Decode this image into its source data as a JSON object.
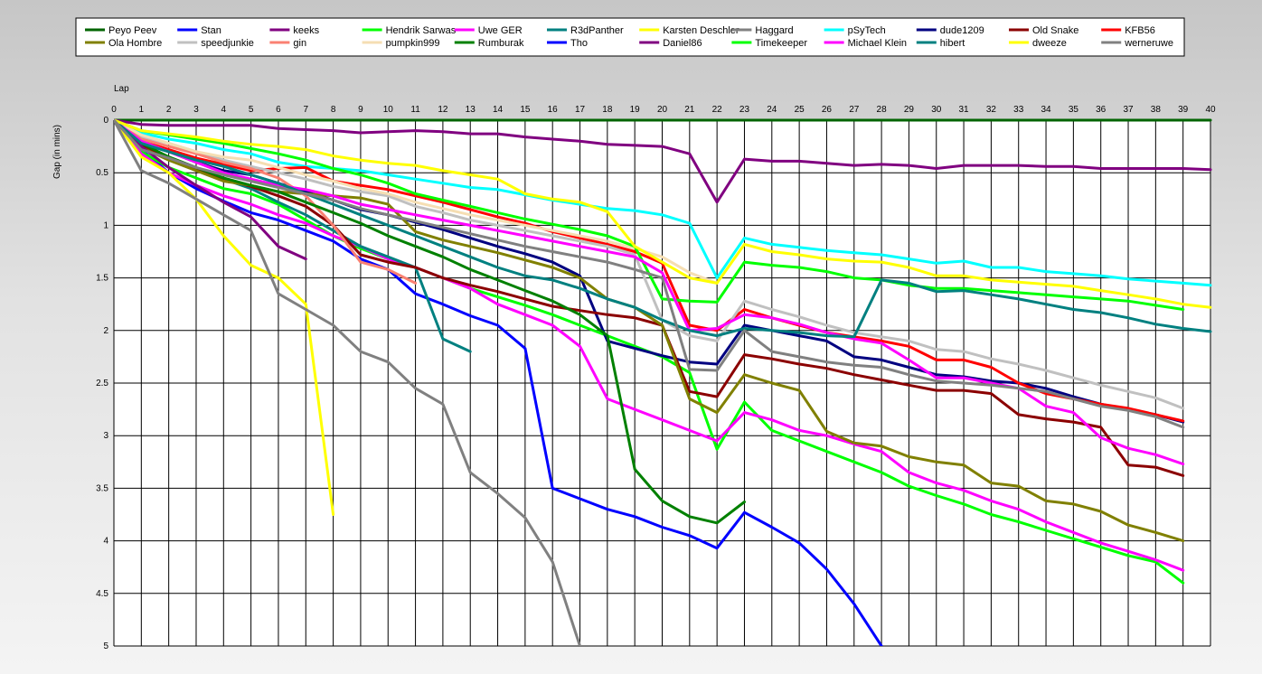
{
  "chart_data": {
    "type": "line",
    "title": "",
    "xlabel": "Lap",
    "ylabel": "Gap (in mins)",
    "xlim": [
      0,
      40
    ],
    "ylim": [
      0,
      5
    ],
    "y_inverted": true,
    "grid": true,
    "legend_position": "top",
    "x_ticks": [
      "0",
      "1",
      "2",
      "3",
      "4",
      "5",
      "6",
      "7",
      "8",
      "9",
      "10",
      "11",
      "12",
      "13",
      "14",
      "15",
      "16",
      "17",
      "18",
      "19",
      "20",
      "21",
      "22",
      "23",
      "24",
      "25",
      "26",
      "27",
      "28",
      "29",
      "30",
      "31",
      "32",
      "33",
      "34",
      "35",
      "36",
      "37",
      "38",
      "39",
      "40"
    ],
    "y_ticks": [
      "0",
      "0.5",
      "1",
      "1.5",
      "2",
      "2.5",
      "3",
      "3.5",
      "4",
      "4.5",
      "5"
    ],
    "series": [
      {
        "name": "Peyo Peev",
        "color": "#006400",
        "values": [
          0,
          0,
          0,
          0,
          0,
          0,
          0,
          0,
          0,
          0,
          0,
          0,
          0,
          0,
          0,
          0,
          0,
          0,
          0,
          0,
          0,
          0,
          0,
          0,
          0,
          0,
          0,
          0,
          0,
          0,
          0,
          0,
          0,
          0,
          0,
          0,
          0,
          0,
          0,
          0,
          0
        ]
      },
      {
        "name": "Stan",
        "color": "#0000ff",
        "values": [
          0,
          0.28,
          0.5,
          0.65,
          0.77,
          0.88,
          0.95,
          1.05,
          1.15,
          1.32,
          1.42,
          1.65,
          1.75,
          1.86,
          1.95,
          2.17,
          3.5,
          3.6,
          3.7,
          3.77,
          3.87,
          3.95,
          4.07,
          3.73,
          3.87,
          4.02,
          4.27,
          4.6,
          5.0
        ]
      },
      {
        "name": "keeks",
        "color": "#800080",
        "values": [
          0,
          0.04,
          0.05,
          0.05,
          0.05,
          0.05,
          0.08,
          0.09,
          0.1,
          0.12,
          0.11,
          0.1,
          0.11,
          0.13,
          0.13,
          0.16,
          0.18,
          0.2,
          0.23,
          0.24,
          0.25,
          0.32,
          0.78,
          0.37,
          0.39,
          0.39,
          0.41,
          0.43,
          0.42,
          0.43,
          0.46,
          0.43,
          0.43,
          0.43,
          0.44,
          0.44,
          0.46,
          0.46,
          0.46,
          0.46,
          0.47
        ]
      },
      {
        "name": "Hendrik Sarwas",
        "color": "#00ff00",
        "values": [
          0,
          0.3,
          0.45,
          0.55,
          0.65,
          0.7,
          0.8,
          0.95,
          1.1,
          1.22,
          1.32,
          1.4,
          1.5,
          1.6,
          1.68,
          1.76,
          1.85,
          1.95,
          2.05,
          2.15,
          2.25,
          2.4,
          3.13,
          2.68,
          2.95,
          3.05,
          3.15,
          3.25,
          3.35,
          3.48,
          3.57,
          3.65,
          3.75,
          3.82,
          3.9,
          3.98,
          4.06,
          4.14,
          4.2,
          4.4
        ]
      },
      {
        "name": "Uwe GER",
        "color": "#ff00ff",
        "values": [
          0,
          0.32,
          0.5,
          0.62,
          0.72,
          0.8,
          0.9,
          0.98,
          1.1,
          1.2,
          1.32,
          1.4,
          1.5,
          1.6,
          1.75,
          1.85,
          1.95,
          2.15,
          2.65,
          2.75,
          2.85,
          2.95,
          3.05,
          2.78,
          2.85,
          2.95,
          3.0,
          3.08,
          3.15,
          3.35,
          3.45,
          3.52,
          3.62,
          3.7,
          3.82,
          3.92,
          4.02,
          4.1,
          4.18,
          4.28
        ]
      },
      {
        "name": "R3dPanther",
        "color": "#008080",
        "values": [
          0,
          0.25,
          0.36,
          0.47,
          0.56,
          0.65,
          0.78,
          0.9,
          1.05,
          1.2,
          1.3,
          1.4,
          2.08,
          2.2
        ]
      },
      {
        "name": "Karsten Deschler",
        "color": "#ffff00",
        "values": [
          0,
          0.35,
          0.5,
          0.75,
          1.1,
          1.38,
          1.5,
          1.75,
          3.75
        ]
      },
      {
        "name": "Haggard",
        "color": "#808080",
        "values": [
          0,
          0.48,
          0.6,
          0.75,
          0.9,
          1.05,
          1.65,
          1.8,
          1.95,
          2.2,
          2.3,
          2.55,
          2.7,
          3.35,
          3.55,
          3.78,
          4.2,
          5.0
        ]
      },
      {
        "name": "pSyTech",
        "color": "#00ffff",
        "values": [
          0,
          0.12,
          0.18,
          0.22,
          0.28,
          0.32,
          0.4,
          0.44,
          0.46,
          0.48,
          0.52,
          0.56,
          0.6,
          0.64,
          0.66,
          0.71,
          0.76,
          0.8,
          0.84,
          0.86,
          0.9,
          0.98,
          1.5,
          1.12,
          1.18,
          1.21,
          1.24,
          1.26,
          1.28,
          1.32,
          1.36,
          1.34,
          1.4,
          1.4,
          1.44,
          1.46,
          1.48,
          1.51,
          1.53,
          1.55,
          1.57
        ]
      },
      {
        "name": "dude1209",
        "color": "#000080",
        "values": [
          0,
          0.22,
          0.3,
          0.4,
          0.48,
          0.52,
          0.6,
          0.68,
          0.76,
          0.85,
          0.9,
          0.97,
          1.04,
          1.12,
          1.2,
          1.27,
          1.35,
          1.48,
          2.1,
          2.17,
          2.24,
          2.3,
          2.32,
          1.95,
          2.0,
          2.05,
          2.1,
          2.25,
          2.28,
          2.35,
          2.42,
          2.44,
          2.48,
          2.5,
          2.55,
          2.63,
          2.7,
          2.75,
          2.8,
          2.87
        ]
      },
      {
        "name": "Old Snake",
        "color": "#8b0000",
        "values": [
          0,
          0.24,
          0.36,
          0.46,
          0.56,
          0.63,
          0.72,
          0.82,
          1.0,
          1.28,
          1.35,
          1.4,
          1.5,
          1.57,
          1.63,
          1.7,
          1.77,
          1.81,
          1.85,
          1.88,
          1.95,
          2.58,
          2.63,
          2.23,
          2.27,
          2.32,
          2.36,
          2.42,
          2.47,
          2.52,
          2.57,
          2.57,
          2.6,
          2.8,
          2.84,
          2.87,
          2.92,
          3.28,
          3.3,
          3.38
        ]
      },
      {
        "name": "KFB56",
        "color": "#ff0000",
        "values": [
          0,
          0.2,
          0.28,
          0.36,
          0.42,
          0.48,
          0.46,
          0.45,
          0.58,
          0.62,
          0.66,
          0.72,
          0.78,
          0.85,
          0.92,
          0.98,
          1.06,
          1.12,
          1.18,
          1.25,
          1.36,
          1.95,
          2.0,
          1.8,
          1.88,
          1.95,
          2.02,
          2.06,
          2.1,
          2.15,
          2.28,
          2.28,
          2.35,
          2.5,
          2.6,
          2.65,
          2.7,
          2.74,
          2.8,
          2.86
        ]
      },
      {
        "name": "Ola Hombre",
        "color": "#808000",
        "values": [
          0,
          0.26,
          0.38,
          0.48,
          0.58,
          0.62,
          0.68,
          0.7,
          0.72,
          0.74,
          0.8,
          1.06,
          1.14,
          1.2,
          1.26,
          1.33,
          1.4,
          1.5,
          1.7,
          1.78,
          1.95,
          2.65,
          2.78,
          2.42,
          2.5,
          2.57,
          2.96,
          3.07,
          3.1,
          3.2,
          3.25,
          3.28,
          3.45,
          3.48,
          3.62,
          3.65,
          3.72,
          3.85,
          3.92,
          4.0
        ]
      },
      {
        "name": "speedjunkie",
        "color": "#c0c0c0",
        "values": [
          0,
          0.16,
          0.22,
          0.3,
          0.38,
          0.44,
          0.5,
          0.56,
          0.63,
          0.68,
          0.72,
          0.82,
          0.88,
          0.95,
          1.0,
          1.05,
          1.1,
          1.15,
          1.2,
          1.28,
          1.9,
          2.05,
          2.1,
          1.72,
          1.8,
          1.87,
          1.95,
          2.02,
          2.06,
          2.1,
          2.18,
          2.2,
          2.27,
          2.32,
          2.38,
          2.45,
          2.52,
          2.58,
          2.64,
          2.74
        ]
      },
      {
        "name": "gin",
        "color": "#fa8072",
        "values": [
          0,
          0.18,
          0.25,
          0.32,
          0.4,
          0.46,
          0.55,
          0.72,
          1.0,
          1.35,
          1.42,
          1.55
        ]
      },
      {
        "name": "pumpkin999",
        "color": "#f5deb3",
        "values": [
          0,
          0.14,
          0.22,
          0.3,
          0.35,
          0.38,
          0.45,
          0.52,
          0.58,
          0.65,
          0.7,
          0.78,
          0.84,
          0.9,
          0.95,
          1.0,
          1.05,
          1.1,
          1.15,
          1.22,
          1.3,
          1.45,
          1.55
        ]
      },
      {
        "name": "Rumburak",
        "color": "#008000",
        "values": [
          0,
          0.22,
          0.35,
          0.45,
          0.55,
          0.62,
          0.68,
          0.78,
          0.88,
          0.98,
          1.1,
          1.2,
          1.3,
          1.42,
          1.52,
          1.62,
          1.72,
          1.85,
          2.05,
          3.32,
          3.62,
          3.77,
          3.83,
          3.63
        ]
      },
      {
        "name": "Tho",
        "color": "#0000ff",
        "values": []
      },
      {
        "name": "Daniel86",
        "color": "#800080",
        "values": [
          0,
          0.25,
          0.45,
          0.62,
          0.78,
          0.92,
          1.2,
          1.32
        ]
      },
      {
        "name": "Timekeeper",
        "color": "#00ff00",
        "values": [
          0,
          0.1,
          0.14,
          0.18,
          0.22,
          0.27,
          0.32,
          0.38,
          0.46,
          0.52,
          0.6,
          0.7,
          0.76,
          0.82,
          0.88,
          0.94,
          0.99,
          1.04,
          1.1,
          1.2,
          1.7,
          1.72,
          1.73,
          1.35,
          1.38,
          1.4,
          1.44,
          1.5,
          1.52,
          1.57,
          1.6,
          1.6,
          1.62,
          1.64,
          1.66,
          1.68,
          1.7,
          1.72,
          1.76,
          1.8
        ]
      },
      {
        "name": "Michael Klein",
        "color": "#ff00ff",
        "values": [
          0,
          0.2,
          0.3,
          0.4,
          0.5,
          0.56,
          0.62,
          0.66,
          0.72,
          0.8,
          0.85,
          0.9,
          0.95,
          1.0,
          1.05,
          1.1,
          1.15,
          1.2,
          1.25,
          1.3,
          1.45,
          2.0,
          1.98,
          1.85,
          1.88,
          1.94,
          2.02,
          2.08,
          2.12,
          2.28,
          2.45,
          2.45,
          2.5,
          2.55,
          2.72,
          2.78,
          3.02,
          3.12,
          3.18,
          3.27
        ]
      },
      {
        "name": "hibert",
        "color": "#008080",
        "values": [
          0,
          0.22,
          0.3,
          0.38,
          0.44,
          0.52,
          0.6,
          0.7,
          0.8,
          0.9,
          1.0,
          1.1,
          1.2,
          1.3,
          1.4,
          1.48,
          1.52,
          1.6,
          1.7,
          1.78,
          1.9,
          2.0,
          2.05,
          1.98,
          2.0,
          2.02,
          2.05,
          2.06,
          1.52,
          1.55,
          1.63,
          1.62,
          1.66,
          1.7,
          1.75,
          1.8,
          1.83,
          1.88,
          1.94,
          1.98,
          2.01
        ]
      },
      {
        "name": "dweeze",
        "color": "#ffff00",
        "values": [
          0,
          0.1,
          0.13,
          0.16,
          0.2,
          0.23,
          0.25,
          0.28,
          0.34,
          0.38,
          0.41,
          0.43,
          0.48,
          0.52,
          0.56,
          0.7,
          0.75,
          0.78,
          0.87,
          1.2,
          1.35,
          1.5,
          1.55,
          1.18,
          1.25,
          1.28,
          1.32,
          1.34,
          1.35,
          1.4,
          1.48,
          1.48,
          1.52,
          1.54,
          1.56,
          1.58,
          1.62,
          1.66,
          1.7,
          1.75,
          1.78
        ]
      },
      {
        "name": "werneruwe",
        "color": "#808080",
        "values": [
          0,
          0.28,
          0.36,
          0.45,
          0.52,
          0.58,
          0.64,
          0.7,
          0.76,
          0.84,
          0.9,
          0.96,
          1.02,
          1.08,
          1.14,
          1.2,
          1.25,
          1.3,
          1.35,
          1.42,
          1.5,
          2.37,
          2.38,
          2.0,
          2.2,
          2.25,
          2.3,
          2.33,
          2.35,
          2.42,
          2.48,
          2.5,
          2.52,
          2.55,
          2.58,
          2.65,
          2.72,
          2.76,
          2.82,
          2.92
        ]
      }
    ]
  }
}
